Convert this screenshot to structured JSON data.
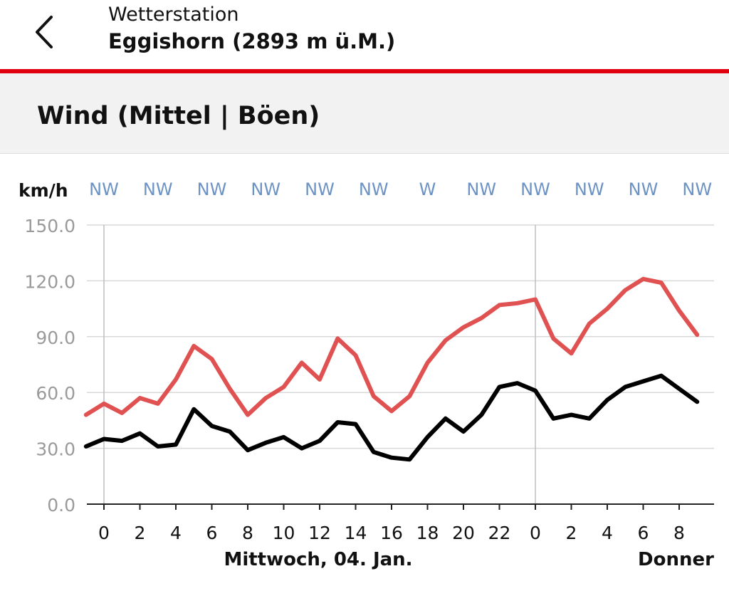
{
  "header": {
    "back_icon": "chevron-left-icon",
    "station_label": "Wetterstation",
    "station_name": "Eggishorn (2893 m ü.M.)",
    "accent_color": "#e1000f"
  },
  "section": {
    "title": "Wind (Mittel | Böen)"
  },
  "chart_data": {
    "type": "line",
    "unit": "km/h",
    "ylim": [
      0,
      150
    ],
    "y_ticks": [
      "0.0",
      "30.0",
      "60.0",
      "90.0",
      "120.0",
      "150.0"
    ],
    "grid": true,
    "x_tick_labels": [
      "0",
      "2",
      "4",
      "6",
      "8",
      "10",
      "12",
      "14",
      "16",
      "18",
      "20",
      "22",
      "0",
      "2",
      "4",
      "6",
      "8"
    ],
    "day_labels": [
      "Mittwoch, 04. Jan.",
      "Donner"
    ],
    "wind_directions": [
      "NW",
      "NW",
      "NW",
      "NW",
      "NW",
      "NW",
      "W",
      "NW",
      "NW",
      "NW",
      "NW",
      "NW"
    ],
    "hours": [
      "-1",
      "0",
      "1",
      "2",
      "3",
      "4",
      "5",
      "6",
      "7",
      "8",
      "9",
      "10",
      "11",
      "12",
      "13",
      "14",
      "15",
      "16",
      "17",
      "18",
      "19",
      "20",
      "21",
      "22",
      "23",
      "24",
      "25",
      "26",
      "27",
      "28",
      "29",
      "30",
      "31",
      "32",
      "33"
    ],
    "series": [
      {
        "color": "#e05252",
        "values": [
          48,
          54,
          49,
          57,
          54,
          67,
          85,
          78,
          62,
          48,
          57,
          63,
          76,
          67,
          89,
          80,
          58,
          50,
          58,
          76,
          88,
          95,
          100,
          107,
          108,
          110,
          89,
          81,
          97,
          105,
          115,
          121,
          119,
          104,
          91
        ]
      },
      {
        "color": "#000000",
        "values": [
          31,
          35,
          34,
          38,
          31,
          32,
          51,
          42,
          39,
          29,
          33,
          36,
          30,
          34,
          44,
          43,
          28,
          25,
          24,
          36,
          46,
          39,
          48,
          63,
          65,
          61,
          46,
          48,
          46,
          56,
          63,
          66,
          69,
          62,
          55
        ]
      }
    ]
  }
}
